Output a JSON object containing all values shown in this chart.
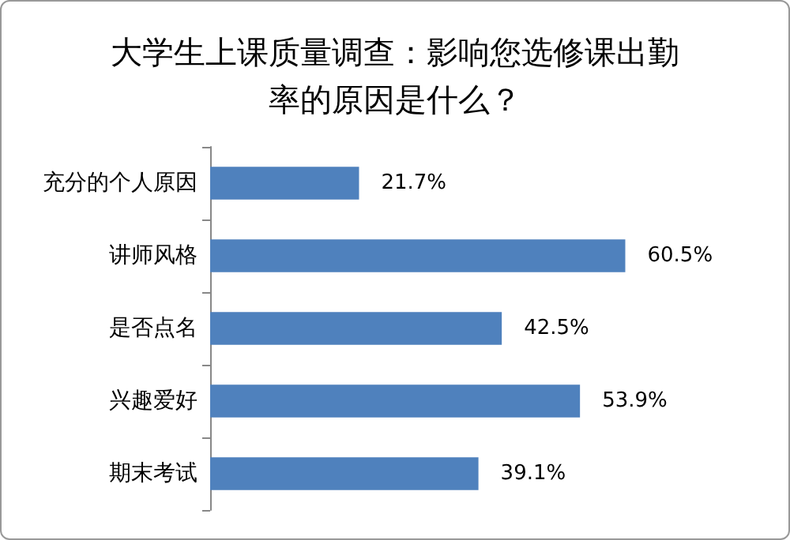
{
  "chart_data": {
    "type": "bar",
    "orientation": "horizontal",
    "title": "大学生上课质量调查：影响您选修课出勤率的原因是什么？",
    "categories": [
      "充分的个人原因",
      "讲师风格",
      "是否点名",
      "兴趣爱好",
      "期末考试"
    ],
    "values": [
      21.7,
      60.5,
      42.5,
      53.9,
      39.1
    ],
    "value_labels": [
      "21.7%",
      "60.5%",
      "42.5%",
      "53.9%",
      "39.1%"
    ],
    "color": "#4f81bd",
    "tick_labels": "y"
  }
}
